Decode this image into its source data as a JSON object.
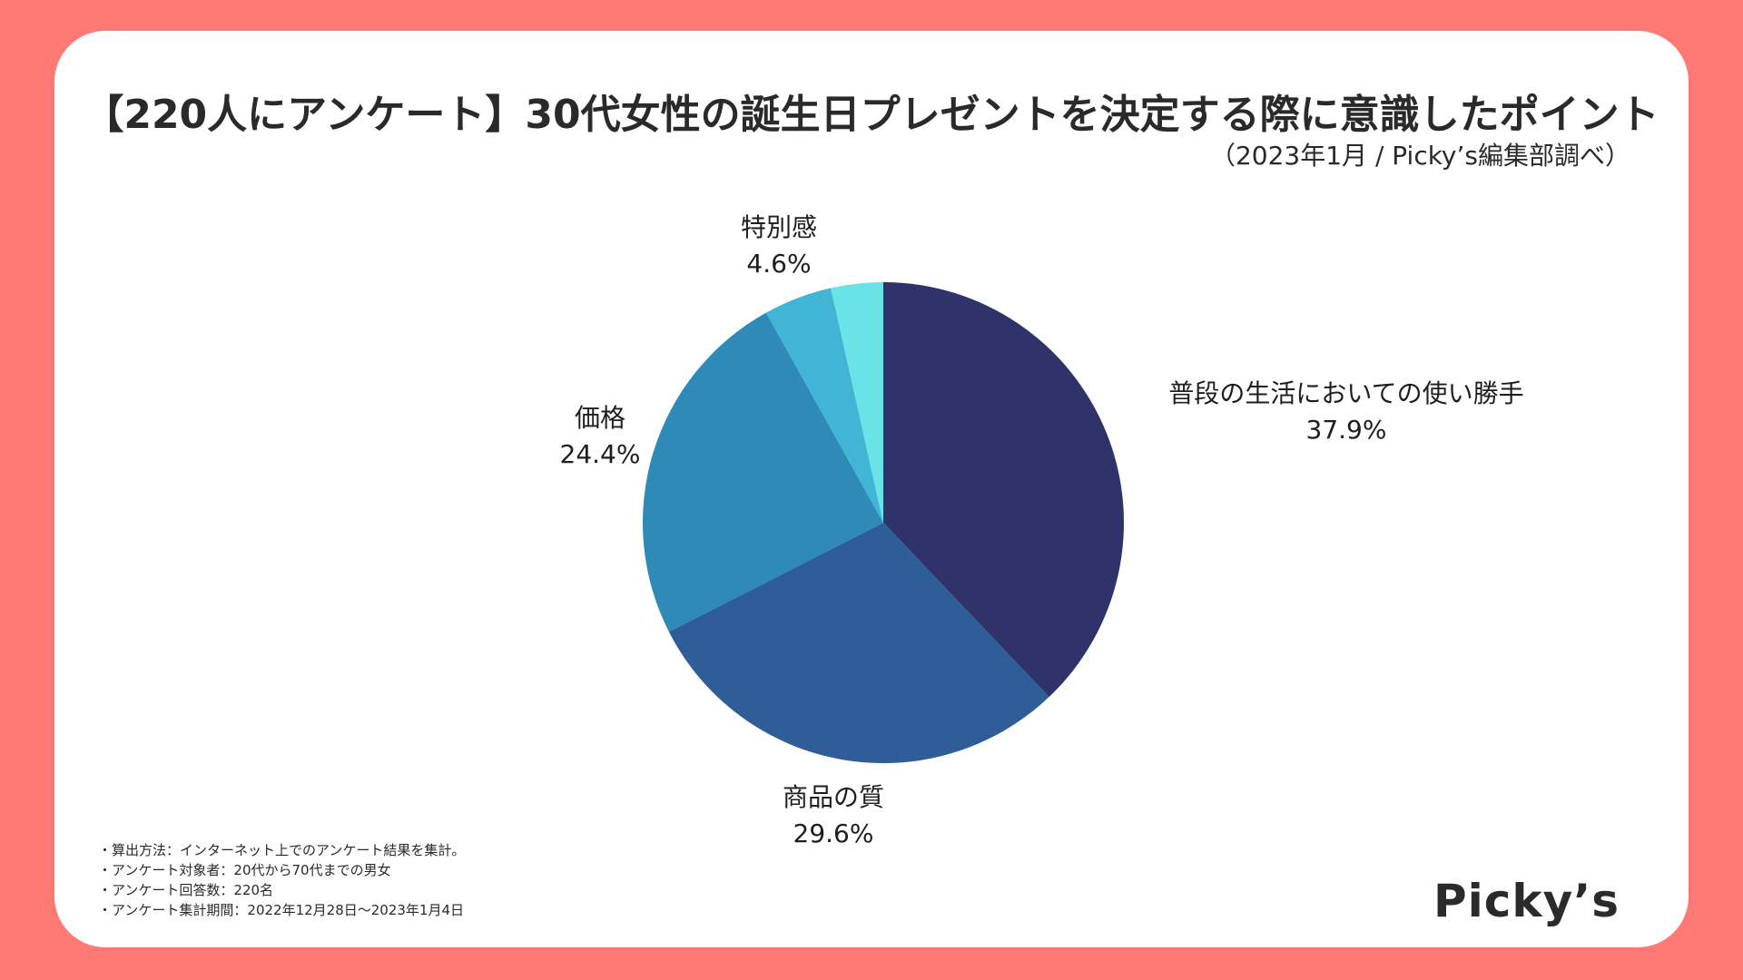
{
  "header": {
    "title": "【220人にアンケート】30代女性の誕生日プレゼントを決定する際に意識したポイント",
    "subtitle": "（2023年1月 / Picky’s編集部調べ）"
  },
  "chart_data": {
    "type": "pie",
    "title": "【220人にアンケート】30代女性の誕生日プレゼントを決定する際に意識したポイント",
    "subtitle": "（2023年1月 / Picky’s編集部調べ）",
    "start_angle": "12 o'clock",
    "direction": "clockwise",
    "slices": [
      {
        "label": "普段の生活においての使い勝手",
        "value": 37.9,
        "display": "37.9%",
        "color": "#2f3369"
      },
      {
        "label": "商品の質",
        "value": 29.6,
        "display": "29.6%",
        "color": "#2e5d97"
      },
      {
        "label": "価格",
        "value": 24.4,
        "display": "24.4%",
        "color": "#2e8bb8"
      },
      {
        "label": "特別感",
        "value": 4.6,
        "display": "4.6%",
        "color": "#41b5d6"
      },
      {
        "label": "",
        "value": 3.5,
        "display": "",
        "color": "#6ae3e7"
      }
    ]
  },
  "notes": [
    "・算出方法：インターネット上でのアンケート結果を集計。",
    "・アンケート対象者：20代から70代までの男女",
    "・アンケート回答数：220名",
    "・アンケート集計期間：2022年12月28日〜2023年1月4日"
  ],
  "logo": {
    "text": "Picky’s"
  }
}
